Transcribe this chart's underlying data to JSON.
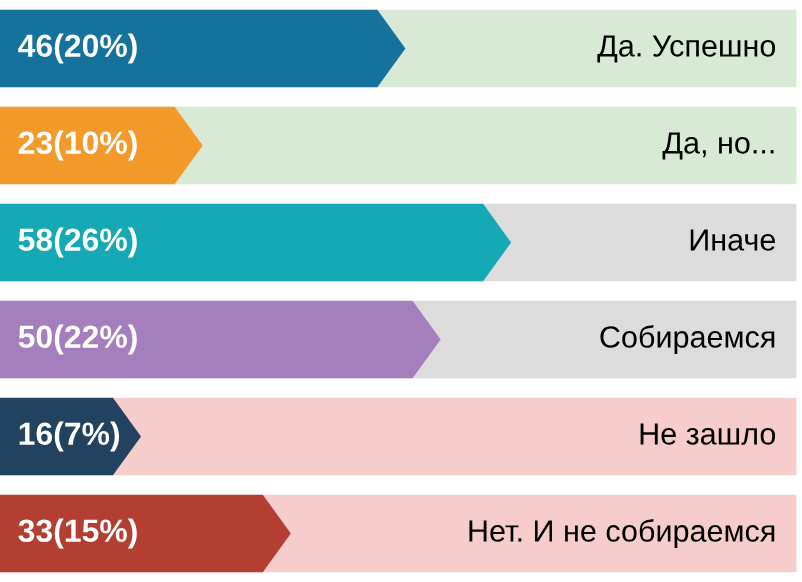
{
  "chart_data": {
    "type": "bar",
    "orientation": "horizontal",
    "categories": [
      "Да. Успешно",
      "Да, но...",
      "Иначе",
      "Собираемся",
      "Не зашло",
      "Нет. И не собираемся"
    ],
    "values": [
      46,
      23,
      58,
      50,
      16,
      33
    ],
    "value_labels": [
      "46(20%)",
      "23(10%)",
      "58(26%)",
      "50(22%)",
      "16(7%)",
      "33(15%)"
    ],
    "colors": [
      "#14729c",
      "#f39a2b",
      "#15a9b5",
      "#a57fbd",
      "#22435f",
      "#b33f32"
    ],
    "xlim": [
      0,
      91
    ],
    "bands": [
      {
        "axis": "y",
        "from": "Да. Успешно",
        "to": "Да, но...",
        "color": "#d8ead6"
      },
      {
        "axis": "y",
        "from": "Иначе",
        "to": "Собираемся",
        "color": "#dcdcdc"
      },
      {
        "axis": "y",
        "from": "Не зашло",
        "to": "Нет. И не собираемся",
        "color": "#f6cdcc"
      }
    ]
  }
}
